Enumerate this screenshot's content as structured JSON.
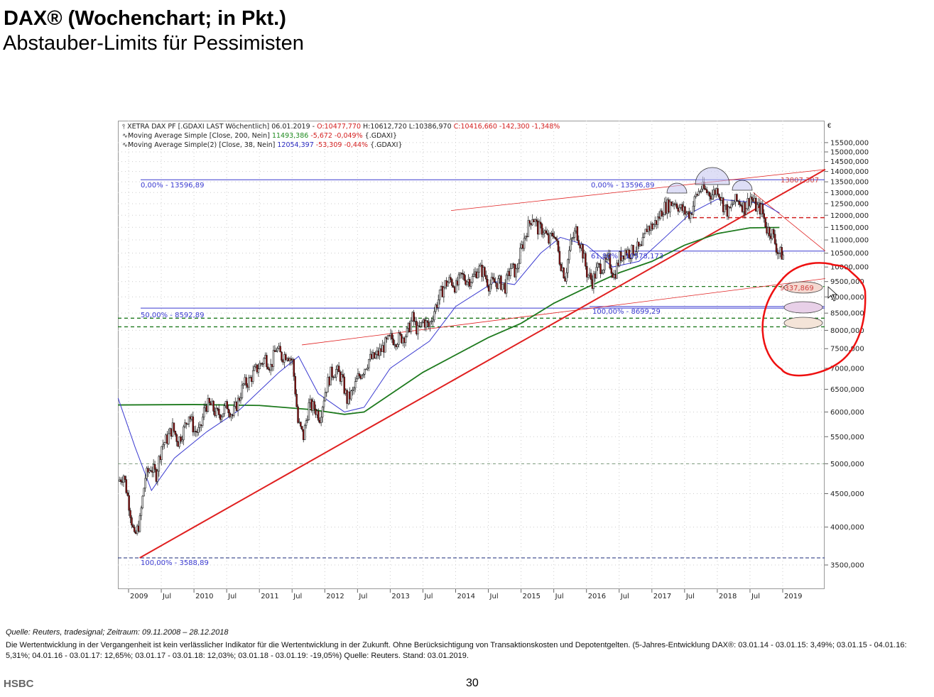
{
  "header": {
    "title": "DAX® (Wochenchart; in Pkt.)",
    "subtitle": "Abstauber-Limits für Pessimisten"
  },
  "legend": {
    "line1_prefix": "XETRA DAX PF [.GDAXI LAST Wöchentlich] 06.01.2019 - ",
    "line1_open": "O:10477,770",
    "line1_hl": " H:10612,720 L:10386,970 ",
    "line1_close": "C:10416,660 -142,300 -1,348%",
    "line2_prefix": "Moving Average Simple [Close, 200, Nein] ",
    "line2_value": "11493,386",
    "line2_change": " -5,672 -0,049% ",
    "line2_suffix": "{.GDAXI}",
    "line3_prefix": "Moving Average Simple(2) [Close, 38, Nein] ",
    "line3_value": "12054,397",
    "line3_change": " -53,309 -0,44% ",
    "line3_suffix": "{.GDAXI}",
    "currency": "€"
  },
  "chart_data": {
    "type": "line",
    "title": "DAX® (Wochenchart; in Pkt.)",
    "scale": "log",
    "ylim": [
      3200,
      16500
    ],
    "xlim": [
      2008.84,
      2019.65
    ],
    "y_ticks": [
      "15500,000",
      "15000,000",
      "14500,000",
      "14000,000",
      "13500,000",
      "13000,000",
      "12500,000",
      "12000,000",
      "11500,000",
      "11000,000",
      "10500,000",
      "10000,000",
      "9500,000",
      "9000,000",
      "8500,000",
      "8000,000",
      "7500,000",
      "7000,000",
      "6500,000",
      "6000,000",
      "5500,000",
      "5000,000",
      "4500,000",
      "4000,000",
      "3500,000"
    ],
    "y_tick_values": [
      15500,
      15000,
      14500,
      14000,
      13500,
      13000,
      12500,
      12000,
      11500,
      11000,
      10500,
      10000,
      9500,
      9000,
      8500,
      8000,
      7500,
      7000,
      6500,
      6000,
      5500,
      5000,
      4500,
      4000,
      3500
    ],
    "x_ticks": [
      {
        "label": "2009",
        "t": 2009
      },
      {
        "label": "Jul",
        "t": 2009.5
      },
      {
        "label": "2010",
        "t": 2010
      },
      {
        "label": "Jul",
        "t": 2010.5
      },
      {
        "label": "2011",
        "t": 2011
      },
      {
        "label": "Jul",
        "t": 2011.5
      },
      {
        "label": "2012",
        "t": 2012
      },
      {
        "label": "Jul",
        "t": 2012.5
      },
      {
        "label": "2013",
        "t": 2013
      },
      {
        "label": "Jul",
        "t": 2013.5
      },
      {
        "label": "2014",
        "t": 2014
      },
      {
        "label": "Jul",
        "t": 2014.5
      },
      {
        "label": "2015",
        "t": 2015
      },
      {
        "label": "Jul",
        "t": 2015.5
      },
      {
        "label": "2016",
        "t": 2016
      },
      {
        "label": "Jul",
        "t": 2016.5
      },
      {
        "label": "2017",
        "t": 2017
      },
      {
        "label": "Jul",
        "t": 2017.5
      },
      {
        "label": "2018",
        "t": 2018
      },
      {
        "label": "Jul",
        "t": 2018.5
      },
      {
        "label": "2019",
        "t": 2019
      }
    ],
    "price_start": 2008.84,
    "price_monthly_close": [
      4700,
      4810,
      4340,
      3840,
      4085,
      4770,
      4940,
      4810,
      5330,
      5460,
      5680,
      5410,
      5630,
      5960,
      5610,
      5600,
      6150,
      6140,
      5960,
      5970,
      6150,
      5930,
      6230,
      6600,
      6690,
      6910,
      7080,
      7270,
      7040,
      7510,
      7290,
      7380,
      7160,
      5780,
      5500,
      6140,
      6090,
      5900,
      6460,
      6860,
      6950,
      6760,
      6260,
      6420,
      6770,
      6970,
      7220,
      7260,
      7410,
      7610,
      7780,
      7740,
      7800,
      7910,
      8350,
      7960,
      8280,
      8100,
      8590,
      9030,
      9410,
      9550,
      9310,
      9690,
      9560,
      9600,
      9940,
      9830,
      9410,
      9470,
      9470,
      9330,
      9980,
      9810,
      10690,
      11400,
      11970,
      11450,
      11410,
      10940,
      11310,
      10260,
      9660,
      10850,
      11380,
      10740,
      9800,
      9500,
      9970,
      10040,
      10260,
      9680,
      10340,
      10590,
      10510,
      10670,
      10640,
      11480,
      11540,
      11830,
      12310,
      12440,
      12620,
      12330,
      12120,
      12060,
      12830,
      13230,
      13020,
      12920,
      13190,
      12440,
      12100,
      12610,
      12600,
      12310,
      12810,
      12360,
      12250,
      11450,
      11260,
      10560,
      10417
    ],
    "series": [
      {
        "name": "Moving Average Simple 200",
        "color": "#1e7a1e",
        "points": [
          [
            2008.84,
            6150
          ],
          [
            2010,
            6160
          ],
          [
            2011,
            6140
          ],
          [
            2011.8,
            6050
          ],
          [
            2012.3,
            5950
          ],
          [
            2012.6,
            6000
          ],
          [
            2013.5,
            6900
          ],
          [
            2014.5,
            7800
          ],
          [
            2015,
            8200
          ],
          [
            2015.5,
            8800
          ],
          [
            2016,
            9300
          ],
          [
            2016.5,
            9800
          ],
          [
            2017,
            10200
          ],
          [
            2017.5,
            10800
          ],
          [
            2018,
            11250
          ],
          [
            2018.5,
            11480
          ],
          [
            2018.95,
            11493
          ]
        ]
      },
      {
        "name": "Moving Average Simple 38",
        "color": "#3a3ad0",
        "points": [
          [
            2008.84,
            6300
          ],
          [
            2009.1,
            5300
          ],
          [
            2009.35,
            4550
          ],
          [
            2009.7,
            5100
          ],
          [
            2010.2,
            5600
          ],
          [
            2010.7,
            6050
          ],
          [
            2011.3,
            6900
          ],
          [
            2011.6,
            7300
          ],
          [
            2011.9,
            6400
          ],
          [
            2012.3,
            6000
          ],
          [
            2012.6,
            6100
          ],
          [
            2013,
            7000
          ],
          [
            2013.6,
            7700
          ],
          [
            2014,
            8700
          ],
          [
            2014.6,
            9500
          ],
          [
            2014.9,
            9400
          ],
          [
            2015.3,
            10500
          ],
          [
            2015.6,
            11100
          ],
          [
            2016,
            10800
          ],
          [
            2016.4,
            10000
          ],
          [
            2016.8,
            10200
          ],
          [
            2017.2,
            11100
          ],
          [
            2017.6,
            12100
          ],
          [
            2018,
            12700
          ],
          [
            2018.4,
            12600
          ],
          [
            2018.7,
            12500
          ],
          [
            2018.95,
            12100
          ]
        ]
      }
    ],
    "annotations": [
      {
        "text": "0,00% - 13596,89",
        "value": 13596.89,
        "color": "#3a3ad0"
      },
      {
        "text": "0,00% - 13596,89",
        "value": 13596.89,
        "color": "#3a3ad0"
      },
      {
        "text": "50,00% - 8592,89",
        "value": 8592.89,
        "color": "#3a3ad0"
      },
      {
        "text": "100,00% - 3588,89",
        "value": 3588.89,
        "color": "#3a3ad0"
      },
      {
        "text": "61,80% - 10578,173",
        "value": 10578.173,
        "color": "#3a3ad0"
      },
      {
        "text": "100,00% - 8699,29",
        "value": 8699.29,
        "color": "#3a3ad0"
      },
      {
        "text": "13807,307",
        "value": 13807.307,
        "color": "#d04040"
      },
      {
        "text": "9337,869",
        "value": 9337.869,
        "color": "#d04040"
      }
    ],
    "levels": {
      "red_dashed": 11900,
      "green_dashed": [
        9337,
        8350,
        8100
      ],
      "gray_dashed": 5000
    }
  },
  "footer": {
    "source": "Quelle: Reuters, tradesignal; Zeitraum: 09.11.2008 – 28.12.2018",
    "disclaimer": "Die Wertentwicklung in der Vergangenheit ist kein verlässlicher Indikator für die Wertentwicklung in der Zukunft. Ohne Berücksichtigung von Transaktionskosten und Depotentgelten. (5-Jahres-Entwicklung  DAX®: 03.01.14 - 03.01.15: 3,49%; 03.01.15 - 04.01.16: 5,31%; 04.01.16 - 03.01.17: 12,65%; 03.01.17 - 03.01.18: 12,03%; 03.01.18 - 03.01.19: -19,05%) Quelle: Reuters. Stand: 03.01.2019.",
    "brand": "HSBC",
    "page": "30"
  }
}
